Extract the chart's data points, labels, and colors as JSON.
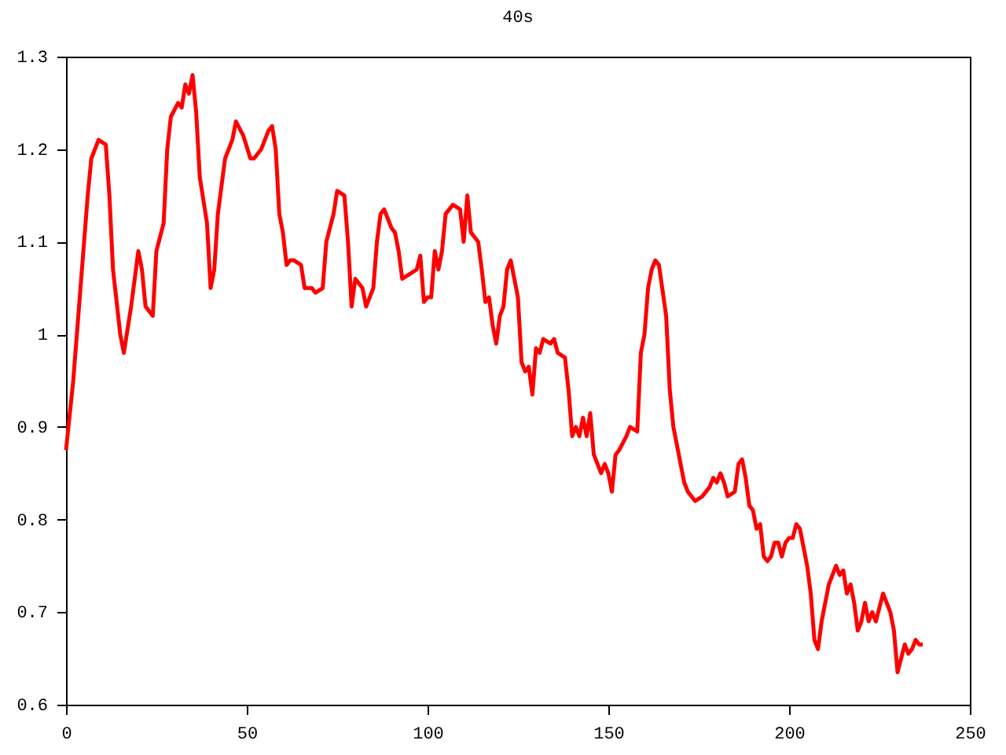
{
  "chart_data": {
    "type": "line",
    "title": "40s",
    "x": [
      0,
      2,
      4,
      6,
      7,
      9,
      11,
      12,
      13,
      15,
      16,
      18,
      20,
      21,
      22,
      24,
      25,
      27,
      28,
      29,
      31,
      32,
      33,
      34,
      35,
      36,
      37,
      39,
      40,
      41,
      42,
      44,
      46,
      47,
      49,
      51,
      52,
      54,
      56,
      57,
      58,
      59,
      60,
      61,
      62,
      63,
      65,
      66,
      68,
      69,
      71,
      72,
      74,
      75,
      77,
      78,
      79,
      80,
      82,
      83,
      85,
      86,
      87,
      88,
      90,
      91,
      92,
      93,
      95,
      97,
      98,
      99,
      100,
      101,
      102,
      103,
      104,
      105,
      107,
      109,
      110,
      111,
      112,
      113,
      114,
      115,
      116,
      117,
      118,
      119,
      120,
      121,
      122,
      123,
      124,
      125,
      126,
      127,
      128,
      129,
      130,
      131,
      132,
      134,
      135,
      136,
      138,
      139,
      140,
      141,
      142,
      143,
      144,
      145,
      146,
      147,
      148,
      149,
      150,
      151,
      152,
      153,
      155,
      156,
      158,
      159,
      160,
      161,
      162,
      163,
      164,
      166,
      167,
      168,
      169,
      170,
      171,
      172,
      174,
      176,
      178,
      179,
      180,
      181,
      182,
      183,
      185,
      186,
      187,
      188,
      189,
      190,
      191,
      192,
      193,
      194,
      195,
      196,
      197,
      198,
      199,
      200,
      201,
      202,
      203,
      204,
      205,
      206,
      207,
      208,
      209,
      210,
      211,
      213,
      214,
      215,
      216,
      217,
      218,
      219,
      220,
      221,
      222,
      223,
      224,
      225,
      226,
      227,
      228,
      229,
      230,
      231,
      232,
      233,
      234,
      235,
      236,
      237
    ],
    "series": [
      {
        "color": "#ff0000",
        "values": [
          0.875,
          0.95,
          1.05,
          1.15,
          1.19,
          1.21,
          1.205,
          1.15,
          1.07,
          1.0,
          0.98,
          1.03,
          1.09,
          1.07,
          1.03,
          1.02,
          1.09,
          1.12,
          1.2,
          1.235,
          1.25,
          1.245,
          1.27,
          1.26,
          1.28,
          1.24,
          1.17,
          1.12,
          1.05,
          1.07,
          1.13,
          1.19,
          1.21,
          1.23,
          1.215,
          1.19,
          1.19,
          1.2,
          1.22,
          1.225,
          1.2,
          1.13,
          1.11,
          1.075,
          1.08,
          1.08,
          1.075,
          1.05,
          1.05,
          1.045,
          1.05,
          1.1,
          1.13,
          1.155,
          1.15,
          1.1,
          1.03,
          1.06,
          1.05,
          1.03,
          1.05,
          1.1,
          1.13,
          1.135,
          1.115,
          1.11,
          1.09,
          1.06,
          1.065,
          1.07,
          1.085,
          1.035,
          1.04,
          1.04,
          1.09,
          1.07,
          1.09,
          1.13,
          1.14,
          1.135,
          1.1,
          1.15,
          1.11,
          1.105,
          1.1,
          1.07,
          1.035,
          1.04,
          1.01,
          0.99,
          1.02,
          1.03,
          1.07,
          1.08,
          1.06,
          1.04,
          0.97,
          0.96,
          0.965,
          0.935,
          0.985,
          0.98,
          0.995,
          0.99,
          0.995,
          0.98,
          0.975,
          0.94,
          0.89,
          0.9,
          0.89,
          0.91,
          0.89,
          0.915,
          0.87,
          0.86,
          0.85,
          0.86,
          0.85,
          0.83,
          0.87,
          0.875,
          0.89,
          0.9,
          0.895,
          0.98,
          1.0,
          1.05,
          1.07,
          1.08,
          1.075,
          1.02,
          0.94,
          0.9,
          0.88,
          0.86,
          0.84,
          0.83,
          0.82,
          0.825,
          0.835,
          0.845,
          0.84,
          0.85,
          0.84,
          0.825,
          0.83,
          0.86,
          0.865,
          0.845,
          0.815,
          0.81,
          0.79,
          0.795,
          0.76,
          0.755,
          0.76,
          0.775,
          0.775,
          0.76,
          0.775,
          0.78,
          0.78,
          0.795,
          0.79,
          0.77,
          0.75,
          0.72,
          0.67,
          0.66,
          0.69,
          0.71,
          0.73,
          0.75,
          0.74,
          0.745,
          0.72,
          0.73,
          0.71,
          0.68,
          0.69,
          0.71,
          0.69,
          0.7,
          0.69,
          0.705,
          0.72,
          0.71,
          0.7,
          0.68,
          0.635,
          0.65,
          0.665,
          0.655,
          0.66,
          0.67,
          0.665,
          0.665
        ]
      }
    ],
    "xlim": [
      0,
      250
    ],
    "xticks": [
      0,
      50,
      100,
      150,
      200,
      250
    ],
    "ylim": [
      0.6,
      1.3
    ],
    "yticks": [
      0.6,
      0.7,
      0.8,
      0.9,
      1,
      1.1,
      1.2,
      1.3
    ],
    "grid": false,
    "legend": false,
    "marker": "none",
    "line_style": "solid"
  }
}
